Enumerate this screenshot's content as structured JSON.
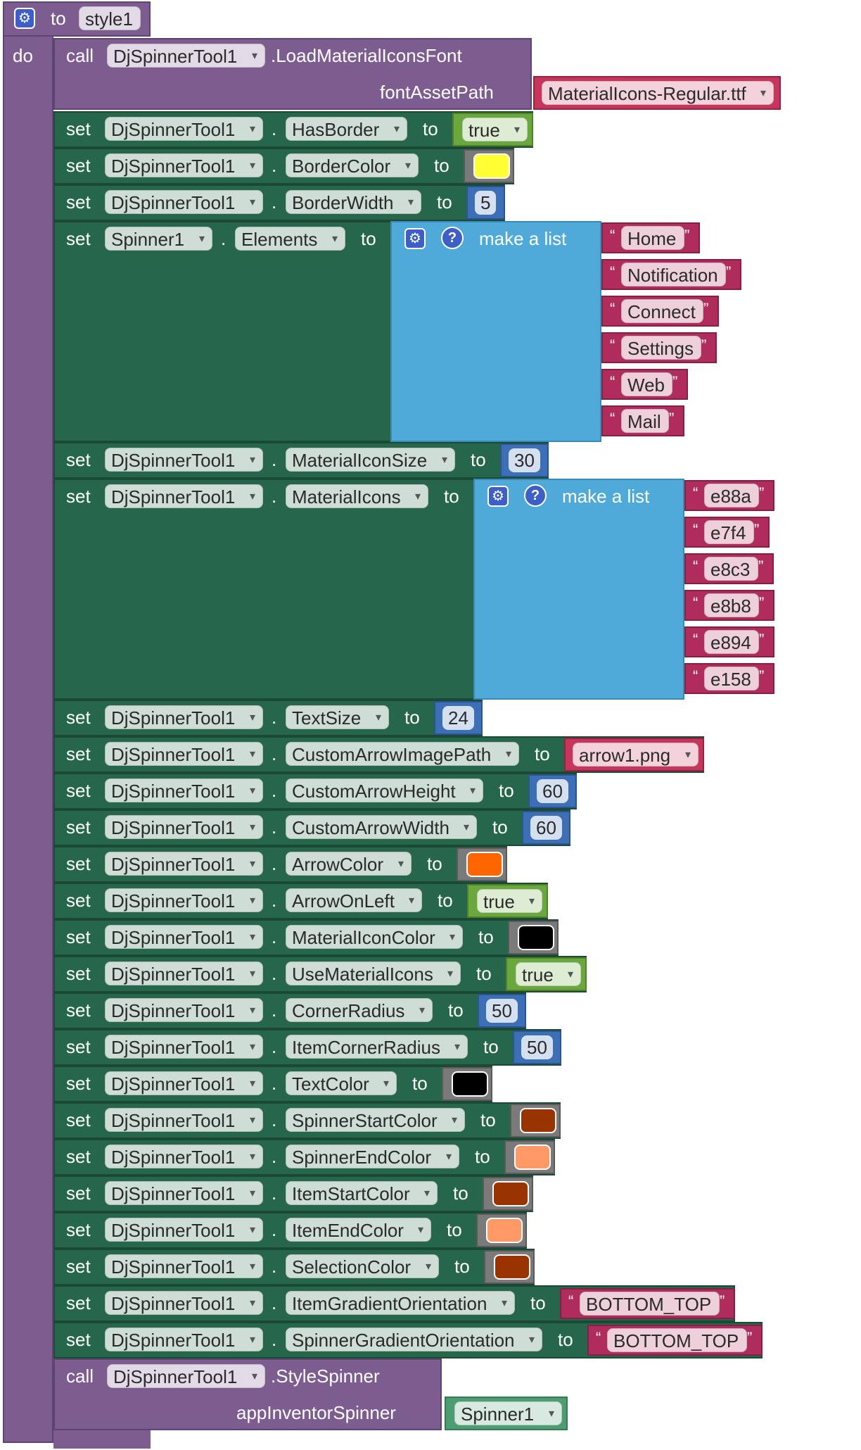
{
  "procedure": {
    "to": "to",
    "name": "style1",
    "do": "do"
  },
  "load_font": {
    "call": "call",
    "component": "DjSpinnerTool1",
    "method": ".LoadMaterialIconsFont",
    "param": "fontAssetPath",
    "asset": "MaterialIcons-Regular.ttf"
  },
  "keywords": {
    "set": "set",
    "to": "to",
    "make_a_list": "make a list",
    "call": "call"
  },
  "icons": {
    "gear": "gear-icon",
    "help": "question-icon",
    "dropdown": "chevron-down-icon"
  },
  "colors": {
    "yellow": "#ffff33",
    "orange": "#ff6600",
    "black": "#000000",
    "dark_brown": "#993300",
    "salmon": "#ff9966"
  },
  "sets": [
    {
      "component": "DjSpinnerTool1",
      "property": "HasBorder",
      "type": "bool",
      "value": "true"
    },
    {
      "component": "DjSpinnerTool1",
      "property": "BorderColor",
      "type": "color",
      "color": "#ffff33"
    },
    {
      "component": "DjSpinnerTool1",
      "property": "BorderWidth",
      "type": "number",
      "value": "5"
    },
    {
      "component": "Spinner1",
      "property": "Elements",
      "type": "list",
      "items": [
        "Home",
        "Notification",
        "Connect",
        "Settings",
        "Web",
        "Mail"
      ]
    },
    {
      "component": "DjSpinnerTool1",
      "property": "MaterialIconSize",
      "type": "number",
      "value": "30"
    },
    {
      "component": "DjSpinnerTool1",
      "property": "MaterialIcons",
      "type": "list",
      "items": [
        "e88a",
        "e7f4",
        "e8c3",
        "e8b8",
        "e894",
        "e158"
      ]
    },
    {
      "component": "DjSpinnerTool1",
      "property": "TextSize",
      "type": "number",
      "value": "24"
    },
    {
      "component": "DjSpinnerTool1",
      "property": "CustomArrowImagePath",
      "type": "asset",
      "value": "arrow1.png"
    },
    {
      "component": "DjSpinnerTool1",
      "property": "CustomArrowHeight",
      "type": "number",
      "value": "60"
    },
    {
      "component": "DjSpinnerTool1",
      "property": "CustomArrowWidth",
      "type": "number",
      "value": "60"
    },
    {
      "component": "DjSpinnerTool1",
      "property": "ArrowColor",
      "type": "color",
      "color": "#ff6600"
    },
    {
      "component": "DjSpinnerTool1",
      "property": "ArrowOnLeft",
      "type": "bool",
      "value": "true"
    },
    {
      "component": "DjSpinnerTool1",
      "property": "MaterialIconColor",
      "type": "color",
      "color": "#000000"
    },
    {
      "component": "DjSpinnerTool1",
      "property": "UseMaterialIcons",
      "type": "bool",
      "value": "true"
    },
    {
      "component": "DjSpinnerTool1",
      "property": "CornerRadius",
      "type": "number",
      "value": "50"
    },
    {
      "component": "DjSpinnerTool1",
      "property": "ItemCornerRadius",
      "type": "number",
      "value": "50"
    },
    {
      "component": "DjSpinnerTool1",
      "property": "TextColor",
      "type": "color",
      "color": "#000000"
    },
    {
      "component": "DjSpinnerTool1",
      "property": "SpinnerStartColor",
      "type": "color",
      "color": "#993300"
    },
    {
      "component": "DjSpinnerTool1",
      "property": "SpinnerEndColor",
      "type": "color",
      "color": "#ff9966"
    },
    {
      "component": "DjSpinnerTool1",
      "property": "ItemStartColor",
      "type": "color",
      "color": "#993300"
    },
    {
      "component": "DjSpinnerTool1",
      "property": "ItemEndColor",
      "type": "color",
      "color": "#ff9966"
    },
    {
      "component": "DjSpinnerTool1",
      "property": "SelectionColor",
      "type": "color",
      "color": "#993300"
    },
    {
      "component": "DjSpinnerTool1",
      "property": "ItemGradientOrientation",
      "type": "string",
      "value": "BOTTOM_TOP"
    },
    {
      "component": "DjSpinnerTool1",
      "property": "SpinnerGradientOrientation",
      "type": "string",
      "value": "BOTTOM_TOP"
    }
  ],
  "style_spinner": {
    "call": "call",
    "component": "DjSpinnerTool1",
    "method": ".StyleSpinner",
    "param": "appInventorSpinner",
    "arg": "Spinner1"
  }
}
